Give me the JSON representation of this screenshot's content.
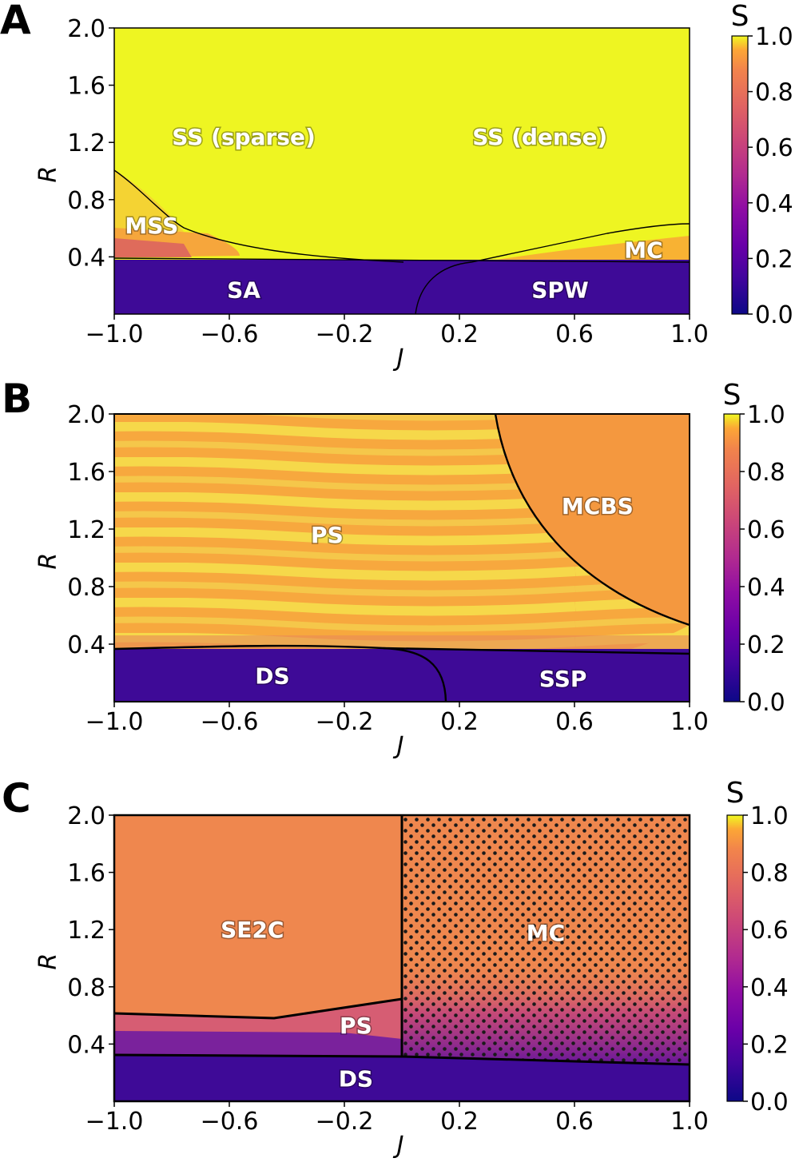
{
  "colors": {
    "yellow": "#eef522",
    "dark": "#3e0a97",
    "orange": "#ef874e",
    "plasma_low": "#0d0887",
    "plasma_mid": "#cc4778",
    "plasma_high": "#f0f921"
  },
  "chart_data": [
    {
      "type": "heatmap",
      "panel": "A",
      "xlabel": "J",
      "ylabel": "R",
      "xlim": [
        -1.0,
        1.0
      ],
      "ylim": [
        0.0,
        2.0
      ],
      "xticks": [
        "−1.0",
        "−0.6",
        "−0.2",
        "0.2",
        "0.6",
        "1.0"
      ],
      "yticks": [
        "2.0",
        "1.6",
        "1.2",
        "0.8",
        "0.4"
      ],
      "colorbar": {
        "label": "S",
        "ticks": [
          "1.0",
          "0.8",
          "0.6",
          "0.4",
          "0.2",
          "0.0"
        ]
      },
      "regions": [
        {
          "label": "SS (sparse)",
          "J": -0.55,
          "R": 1.24
        },
        {
          "label": "SS (dense)",
          "J": 0.48,
          "R": 1.24
        },
        {
          "label": "MSS",
          "J": -0.87,
          "R": 0.62
        },
        {
          "label": "MC",
          "J": 0.84,
          "R": 0.45
        },
        {
          "label": "SA",
          "J": -0.55,
          "R": 0.17
        },
        {
          "label": "SPW",
          "J": 0.55,
          "R": 0.17
        }
      ]
    },
    {
      "type": "heatmap",
      "panel": "B",
      "xlabel": "J",
      "ylabel": "R",
      "xlim": [
        -1.0,
        1.0
      ],
      "ylim": [
        0.0,
        2.0
      ],
      "xticks": [
        "−1.0",
        "−0.6",
        "−0.2",
        "0.2",
        "0.6",
        "1.0"
      ],
      "yticks": [
        "2.0",
        "1.6",
        "1.2",
        "0.8",
        "0.4"
      ],
      "colorbar": {
        "label": "S",
        "ticks": [
          "1.0",
          "0.8",
          "0.6",
          "0.4",
          "0.2",
          "0.0"
        ]
      },
      "regions": [
        {
          "label": "PS",
          "J": -0.26,
          "R": 1.16
        },
        {
          "label": "MCBS",
          "J": 0.68,
          "R": 1.36
        },
        {
          "label": "DS",
          "J": -0.45,
          "R": 0.18
        },
        {
          "label": "SSP",
          "J": 0.56,
          "R": 0.16
        }
      ]
    },
    {
      "type": "heatmap",
      "panel": "C",
      "xlabel": "J",
      "ylabel": "R",
      "xlim": [
        -1.0,
        1.0
      ],
      "ylim": [
        0.0,
        2.0
      ],
      "xticks": [
        "−1.0",
        "−0.6",
        "−0.2",
        "0.2",
        "0.6",
        "1.0"
      ],
      "yticks": [
        "2.0",
        "1.6",
        "1.2",
        "0.8",
        "0.4"
      ],
      "colorbar": {
        "label": "S",
        "ticks": [
          "1.0",
          "0.8",
          "0.6",
          "0.4",
          "0.2",
          "0.0"
        ]
      },
      "regions": [
        {
          "label": "SE2C",
          "J": -0.52,
          "R": 1.2
        },
        {
          "label": "MC",
          "J": 0.5,
          "R": 1.18
        },
        {
          "label": "PS",
          "J": -0.16,
          "R": 0.53
        },
        {
          "label": "DS",
          "J": -0.16,
          "R": 0.16
        }
      ]
    }
  ]
}
